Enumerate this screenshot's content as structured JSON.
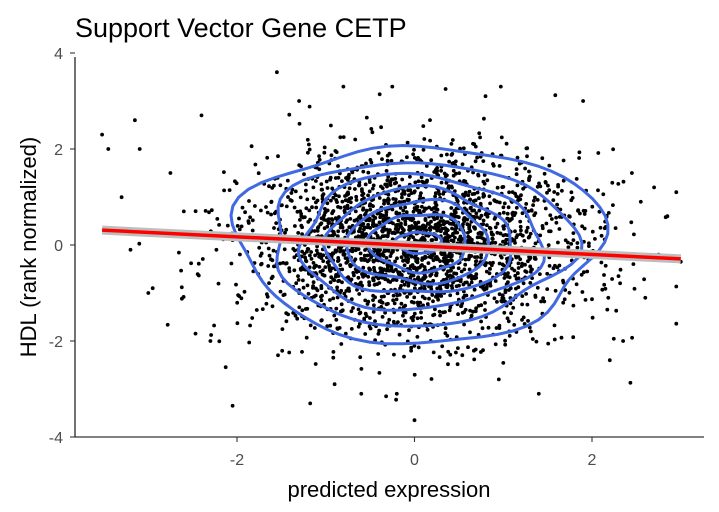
{
  "chart_data": {
    "type": "scatter",
    "title": "Support Vector Gene CETP",
    "xlabel": "predicted expression",
    "ylabel": "HDL (rank normalized)",
    "xlim": [
      -3.8,
      3.25
    ],
    "ylim": [
      -4,
      4
    ],
    "x_ticks": [
      -2,
      0,
      2
    ],
    "y_ticks": [
      -4,
      -2,
      0,
      2,
      4
    ],
    "grid": false,
    "colors": {
      "points": "#000000",
      "density_contours": "#4169e1",
      "fit_line": "#ff0000",
      "confidence_band": "#bdbdbd"
    },
    "regression_line": {
      "x": [
        -3.52,
        3.0
      ],
      "y": [
        0.31,
        -0.29
      ]
    },
    "density_contour_radii": [
      {
        "rx": 2.05,
        "ry": 2.05
      },
      {
        "rx": 1.7,
        "ry": 1.7
      },
      {
        "rx": 1.35,
        "ry": 1.4
      },
      {
        "rx": 1.05,
        "ry": 1.1
      },
      {
        "rx": 0.8,
        "ry": 0.85
      },
      {
        "rx": 0.55,
        "ry": 0.6
      },
      {
        "rx": 0.25,
        "ry": 0.22
      }
    ],
    "contour_center": {
      "x": 0.05,
      "y": 0.05
    },
    "outlier_points": [
      {
        "x": -3.52,
        "y": 2.3
      },
      {
        "x": -3.45,
        "y": 2.0
      },
      {
        "x": -3.15,
        "y": 2.6
      },
      {
        "x": -3.2,
        "y": -0.1
      },
      {
        "x": -3.0,
        "y": -1.0
      },
      {
        "x": -2.95,
        "y": -0.9
      },
      {
        "x": -2.75,
        "y": 1.5
      },
      {
        "x": -2.6,
        "y": 0.7
      },
      {
        "x": -2.4,
        "y": 2.7
      },
      {
        "x": -2.3,
        "y": -2.0
      },
      {
        "x": -2.05,
        "y": -3.35
      },
      {
        "x": -1.55,
        "y": 3.6
      },
      {
        "x": -1.3,
        "y": 3.0
      },
      {
        "x": -0.9,
        "y": -2.9
      },
      {
        "x": -0.6,
        "y": -3.1
      },
      {
        "x": -0.2,
        "y": -3.1
      },
      {
        "x": 0.0,
        "y": -3.65
      },
      {
        "x": -0.25,
        "y": 3.3
      },
      {
        "x": 0.35,
        "y": 3.25
      },
      {
        "x": 0.8,
        "y": 3.1
      },
      {
        "x": 0.95,
        "y": -2.8
      },
      {
        "x": 1.4,
        "y": -3.1
      },
      {
        "x": 1.9,
        "y": 3.0
      },
      {
        "x": 2.2,
        "y": -2.4
      },
      {
        "x": 2.35,
        "y": -2.0
      },
      {
        "x": 2.45,
        "y": 1.5
      },
      {
        "x": 2.55,
        "y": 0.9
      },
      {
        "x": 2.6,
        "y": -1.1
      },
      {
        "x": 2.7,
        "y": 1.2
      },
      {
        "x": 2.75,
        "y": -0.2
      },
      {
        "x": 2.85,
        "y": 0.6
      },
      {
        "x": 2.95,
        "y": 1.1
      },
      {
        "x": 3.0,
        "y": -0.35
      }
    ],
    "bulk_sample": {
      "count": 2500,
      "center": {
        "x": 0.0,
        "y": 0.0
      },
      "sd": {
        "x": 0.95,
        "y": 0.95
      },
      "seed": 7
    }
  }
}
